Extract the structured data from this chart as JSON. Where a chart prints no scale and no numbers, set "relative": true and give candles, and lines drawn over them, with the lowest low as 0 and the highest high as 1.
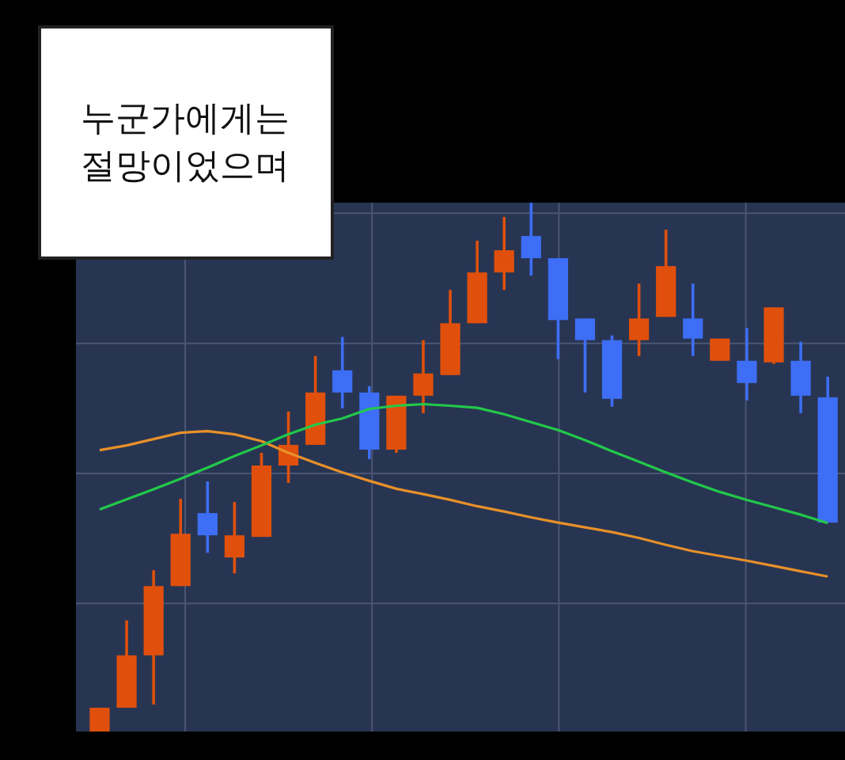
{
  "chart_data": {
    "type": "candlestick",
    "title": "누군가에게는 절망이었으며",
    "relative": true,
    "grid": true,
    "categories": [
      null,
      null,
      null,
      null,
      null,
      null,
      null,
      null,
      null,
      null,
      null,
      null,
      null,
      null,
      null,
      null,
      null,
      null,
      null,
      null,
      null,
      null,
      null,
      null,
      null,
      null,
      null,
      null
    ],
    "ohlc": [
      [
        0,
        0.045,
        0,
        0.045
      ],
      [
        0.045,
        0.21,
        0.045,
        0.144
      ],
      [
        0.144,
        0.305,
        0.051,
        0.275
      ],
      [
        0.275,
        0.44,
        0.275,
        0.374
      ],
      [
        0.413,
        0.473,
        0.338,
        0.371
      ],
      [
        0.329,
        0.434,
        0.299,
        0.371
      ],
      [
        0.368,
        0.527,
        0.368,
        0.503
      ],
      [
        0.503,
        0.605,
        0.47,
        0.542
      ],
      [
        0.542,
        0.71,
        0.542,
        0.641
      ],
      [
        0.683,
        0.746,
        0.611,
        0.641
      ],
      [
        0.641,
        0.653,
        0.515,
        0.533
      ],
      [
        0.533,
        0.635,
        0.527,
        0.635
      ],
      [
        0.635,
        0.74,
        0.602,
        0.677
      ],
      [
        0.674,
        0.835,
        0.674,
        0.772
      ],
      [
        0.772,
        0.928,
        0.772,
        0.868
      ],
      [
        0.868,
        0.973,
        0.835,
        0.91
      ],
      [
        0.937,
        1,
        0.862,
        0.895
      ],
      [
        0.895,
        0.895,
        0.704,
        0.778
      ],
      [
        0.781,
        0.781,
        0.641,
        0.74
      ],
      [
        0.74,
        0.749,
        0.614,
        0.629
      ],
      [
        0.74,
        0.847,
        0.71,
        0.781
      ],
      [
        0.784,
        0.949,
        0.784,
        0.88
      ],
      [
        0.781,
        0.847,
        0.71,
        0.743
      ],
      [
        0.701,
        0.743,
        0.701,
        0.743
      ],
      [
        0.701,
        0.763,
        0.626,
        0.659
      ],
      [
        0.698,
        0.802,
        0.695,
        0.802
      ],
      [
        0.701,
        0.737,
        0.602,
        0.635
      ],
      [
        0.632,
        0.671,
        0.395,
        0.395
      ]
    ],
    "colors": [
      "#e0500c",
      "#e0500c",
      "#e0500c",
      "#e0500c",
      "#3d6ef5",
      "#e0500c",
      "#e0500c",
      "#e0500c",
      "#e0500c",
      "#3d6ef5",
      "#3d6ef5",
      "#e0500c",
      "#e0500c",
      "#e0500c",
      "#e0500c",
      "#e0500c",
      "#3d6ef5",
      "#3d6ef5",
      "#3d6ef5",
      "#3d6ef5",
      "#e0500c",
      "#e0500c",
      "#3d6ef5",
      "#e0500c",
      "#3d6ef5",
      "#e0500c",
      "#3d6ef5",
      "#3d6ef5"
    ],
    "series": [
      {
        "type": "line",
        "color": "#e8902a",
        "values": [
          0.532,
          0.541,
          0.553,
          0.565,
          0.568,
          0.562,
          0.549,
          0.527,
          0.508,
          0.49,
          0.474,
          0.459,
          0.449,
          0.438,
          0.426,
          0.416,
          0.405,
          0.395,
          0.386,
          0.377,
          0.366,
          0.353,
          0.341,
          0.332,
          0.323,
          0.313,
          0.303,
          0.293
        ]
      },
      {
        "type": "line",
        "color": "#22c94a",
        "values": [
          0.42,
          0.439,
          0.458,
          0.478,
          0.499,
          0.521,
          0.541,
          0.562,
          0.58,
          0.592,
          0.61,
          0.616,
          0.619,
          0.616,
          0.612,
          0.6,
          0.585,
          0.57,
          0.551,
          0.53,
          0.51,
          0.49,
          0.471,
          0.453,
          0.438,
          0.424,
          0.41,
          0.394
        ]
      }
    ]
  }
}
